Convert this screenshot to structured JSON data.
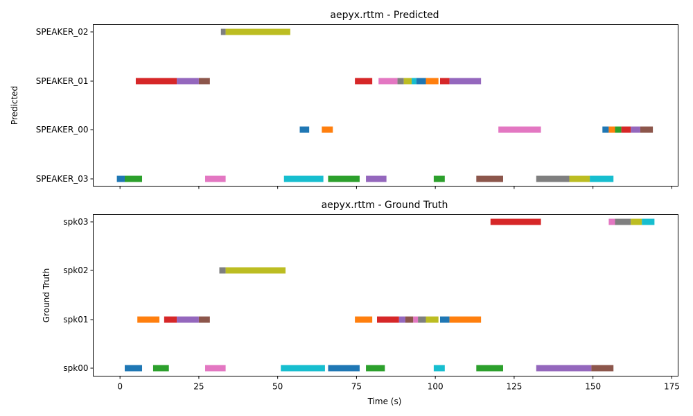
{
  "chart_data": [
    {
      "type": "gantt",
      "title": "aepyx.rttm - Predicted",
      "ylabel": "Predicted",
      "xlabel": "",
      "xlim": [
        -8.5,
        177
      ],
      "xticks": [
        0,
        25,
        50,
        75,
        100,
        125,
        150,
        175
      ],
      "show_xtick_labels": false,
      "categories": [
        "SPEAKER_03",
        "SPEAKER_00",
        "SPEAKER_01",
        "SPEAKER_02"
      ],
      "segments": [
        {
          "speaker": "SPEAKER_03",
          "start": -1.0,
          "end": 1.5,
          "color": "#1f77b4"
        },
        {
          "speaker": "SPEAKER_03",
          "start": 1.5,
          "end": 7.0,
          "color": "#2ca02c"
        },
        {
          "speaker": "SPEAKER_03",
          "start": 27.0,
          "end": 33.5,
          "color": "#e377c2"
        },
        {
          "speaker": "SPEAKER_03",
          "start": 52.0,
          "end": 64.5,
          "color": "#17becf"
        },
        {
          "speaker": "SPEAKER_03",
          "start": 66.0,
          "end": 76.0,
          "color": "#2ca02c"
        },
        {
          "speaker": "SPEAKER_03",
          "start": 78.0,
          "end": 84.5,
          "color": "#9467bd"
        },
        {
          "speaker": "SPEAKER_03",
          "start": 99.5,
          "end": 103.0,
          "color": "#2ca02c"
        },
        {
          "speaker": "SPEAKER_03",
          "start": 113.0,
          "end": 121.5,
          "color": "#8c564b"
        },
        {
          "speaker": "SPEAKER_03",
          "start": 132.0,
          "end": 142.5,
          "color": "#7f7f7f"
        },
        {
          "speaker": "SPEAKER_03",
          "start": 142.5,
          "end": 149.0,
          "color": "#bcbd22"
        },
        {
          "speaker": "SPEAKER_03",
          "start": 149.0,
          "end": 156.5,
          "color": "#17becf"
        },
        {
          "speaker": "SPEAKER_00",
          "start": 57.0,
          "end": 60.0,
          "color": "#1f77b4"
        },
        {
          "speaker": "SPEAKER_00",
          "start": 64.0,
          "end": 67.5,
          "color": "#ff7f0e"
        },
        {
          "speaker": "SPEAKER_00",
          "start": 120.0,
          "end": 133.5,
          "color": "#e377c2"
        },
        {
          "speaker": "SPEAKER_00",
          "start": 153.0,
          "end": 155.0,
          "color": "#1f77b4"
        },
        {
          "speaker": "SPEAKER_00",
          "start": 155.0,
          "end": 157.0,
          "color": "#ff7f0e"
        },
        {
          "speaker": "SPEAKER_00",
          "start": 157.0,
          "end": 159.0,
          "color": "#2ca02c"
        },
        {
          "speaker": "SPEAKER_00",
          "start": 159.0,
          "end": 162.0,
          "color": "#d62728"
        },
        {
          "speaker": "SPEAKER_00",
          "start": 162.0,
          "end": 165.0,
          "color": "#9467bd"
        },
        {
          "speaker": "SPEAKER_00",
          "start": 165.0,
          "end": 169.0,
          "color": "#8c564b"
        },
        {
          "speaker": "SPEAKER_01",
          "start": 5.0,
          "end": 18.0,
          "color": "#d62728"
        },
        {
          "speaker": "SPEAKER_01",
          "start": 18.0,
          "end": 25.0,
          "color": "#9467bd"
        },
        {
          "speaker": "SPEAKER_01",
          "start": 25.0,
          "end": 28.5,
          "color": "#8c564b"
        },
        {
          "speaker": "SPEAKER_01",
          "start": 74.5,
          "end": 80.0,
          "color": "#d62728"
        },
        {
          "speaker": "SPEAKER_01",
          "start": 82.0,
          "end": 88.0,
          "color": "#e377c2"
        },
        {
          "speaker": "SPEAKER_01",
          "start": 88.0,
          "end": 90.0,
          "color": "#7f7f7f"
        },
        {
          "speaker": "SPEAKER_01",
          "start": 90.0,
          "end": 92.5,
          "color": "#bcbd22"
        },
        {
          "speaker": "SPEAKER_01",
          "start": 92.5,
          "end": 94.0,
          "color": "#17becf"
        },
        {
          "speaker": "SPEAKER_01",
          "start": 94.0,
          "end": 97.0,
          "color": "#1f77b4"
        },
        {
          "speaker": "SPEAKER_01",
          "start": 97.0,
          "end": 101.0,
          "color": "#ff7f0e"
        },
        {
          "speaker": "SPEAKER_01",
          "start": 101.5,
          "end": 104.5,
          "color": "#d62728"
        },
        {
          "speaker": "SPEAKER_01",
          "start": 104.5,
          "end": 114.5,
          "color": "#9467bd"
        },
        {
          "speaker": "SPEAKER_02",
          "start": 32.0,
          "end": 33.5,
          "color": "#7f7f7f"
        },
        {
          "speaker": "SPEAKER_02",
          "start": 33.5,
          "end": 54.0,
          "color": "#bcbd22"
        }
      ]
    },
    {
      "type": "gantt",
      "title": "aepyx.rttm - Ground Truth",
      "ylabel": "Ground Truth",
      "xlabel": "Time (s)",
      "xlim": [
        -8.5,
        177
      ],
      "xticks": [
        0,
        25,
        50,
        75,
        100,
        125,
        150,
        175
      ],
      "show_xtick_labels": true,
      "categories": [
        "spk00",
        "spk01",
        "spk02",
        "spk03"
      ],
      "segments": [
        {
          "speaker": "spk00",
          "start": 1.5,
          "end": 7.0,
          "color": "#1f77b4"
        },
        {
          "speaker": "spk00",
          "start": 10.5,
          "end": 15.5,
          "color": "#2ca02c"
        },
        {
          "speaker": "spk00",
          "start": 27.0,
          "end": 33.5,
          "color": "#e377c2"
        },
        {
          "speaker": "spk00",
          "start": 51.0,
          "end": 65.0,
          "color": "#17becf"
        },
        {
          "speaker": "spk00",
          "start": 66.0,
          "end": 76.0,
          "color": "#1f77b4"
        },
        {
          "speaker": "spk00",
          "start": 78.0,
          "end": 84.0,
          "color": "#2ca02c"
        },
        {
          "speaker": "spk00",
          "start": 99.5,
          "end": 103.0,
          "color": "#17becf"
        },
        {
          "speaker": "spk00",
          "start": 113.0,
          "end": 121.5,
          "color": "#2ca02c"
        },
        {
          "speaker": "spk00",
          "start": 132.0,
          "end": 149.5,
          "color": "#9467bd"
        },
        {
          "speaker": "spk00",
          "start": 149.5,
          "end": 156.5,
          "color": "#8c564b"
        },
        {
          "speaker": "spk01",
          "start": 5.5,
          "end": 12.5,
          "color": "#ff7f0e"
        },
        {
          "speaker": "spk01",
          "start": 14.0,
          "end": 18.0,
          "color": "#d62728"
        },
        {
          "speaker": "spk01",
          "start": 18.0,
          "end": 25.0,
          "color": "#9467bd"
        },
        {
          "speaker": "spk01",
          "start": 25.0,
          "end": 28.5,
          "color": "#8c564b"
        },
        {
          "speaker": "spk01",
          "start": 74.5,
          "end": 80.0,
          "color": "#ff7f0e"
        },
        {
          "speaker": "spk01",
          "start": 81.5,
          "end": 88.5,
          "color": "#d62728"
        },
        {
          "speaker": "spk01",
          "start": 88.5,
          "end": 90.5,
          "color": "#9467bd"
        },
        {
          "speaker": "spk01",
          "start": 90.5,
          "end": 93.0,
          "color": "#8c564b"
        },
        {
          "speaker": "spk01",
          "start": 93.0,
          "end": 94.5,
          "color": "#e377c2"
        },
        {
          "speaker": "spk01",
          "start": 94.5,
          "end": 97.0,
          "color": "#7f7f7f"
        },
        {
          "speaker": "spk01",
          "start": 97.0,
          "end": 101.0,
          "color": "#bcbd22"
        },
        {
          "speaker": "spk01",
          "start": 101.5,
          "end": 104.5,
          "color": "#1f77b4"
        },
        {
          "speaker": "spk01",
          "start": 104.5,
          "end": 114.5,
          "color": "#ff7f0e"
        },
        {
          "speaker": "spk02",
          "start": 31.5,
          "end": 33.5,
          "color": "#7f7f7f"
        },
        {
          "speaker": "spk02",
          "start": 33.5,
          "end": 52.5,
          "color": "#bcbd22"
        },
        {
          "speaker": "spk03",
          "start": 117.5,
          "end": 133.5,
          "color": "#d62728"
        },
        {
          "speaker": "spk03",
          "start": 155.0,
          "end": 157.0,
          "color": "#e377c2"
        },
        {
          "speaker": "spk03",
          "start": 157.0,
          "end": 162.0,
          "color": "#7f7f7f"
        },
        {
          "speaker": "spk03",
          "start": 162.0,
          "end": 165.5,
          "color": "#bcbd22"
        },
        {
          "speaker": "spk03",
          "start": 165.5,
          "end": 169.5,
          "color": "#17becf"
        }
      ]
    }
  ]
}
